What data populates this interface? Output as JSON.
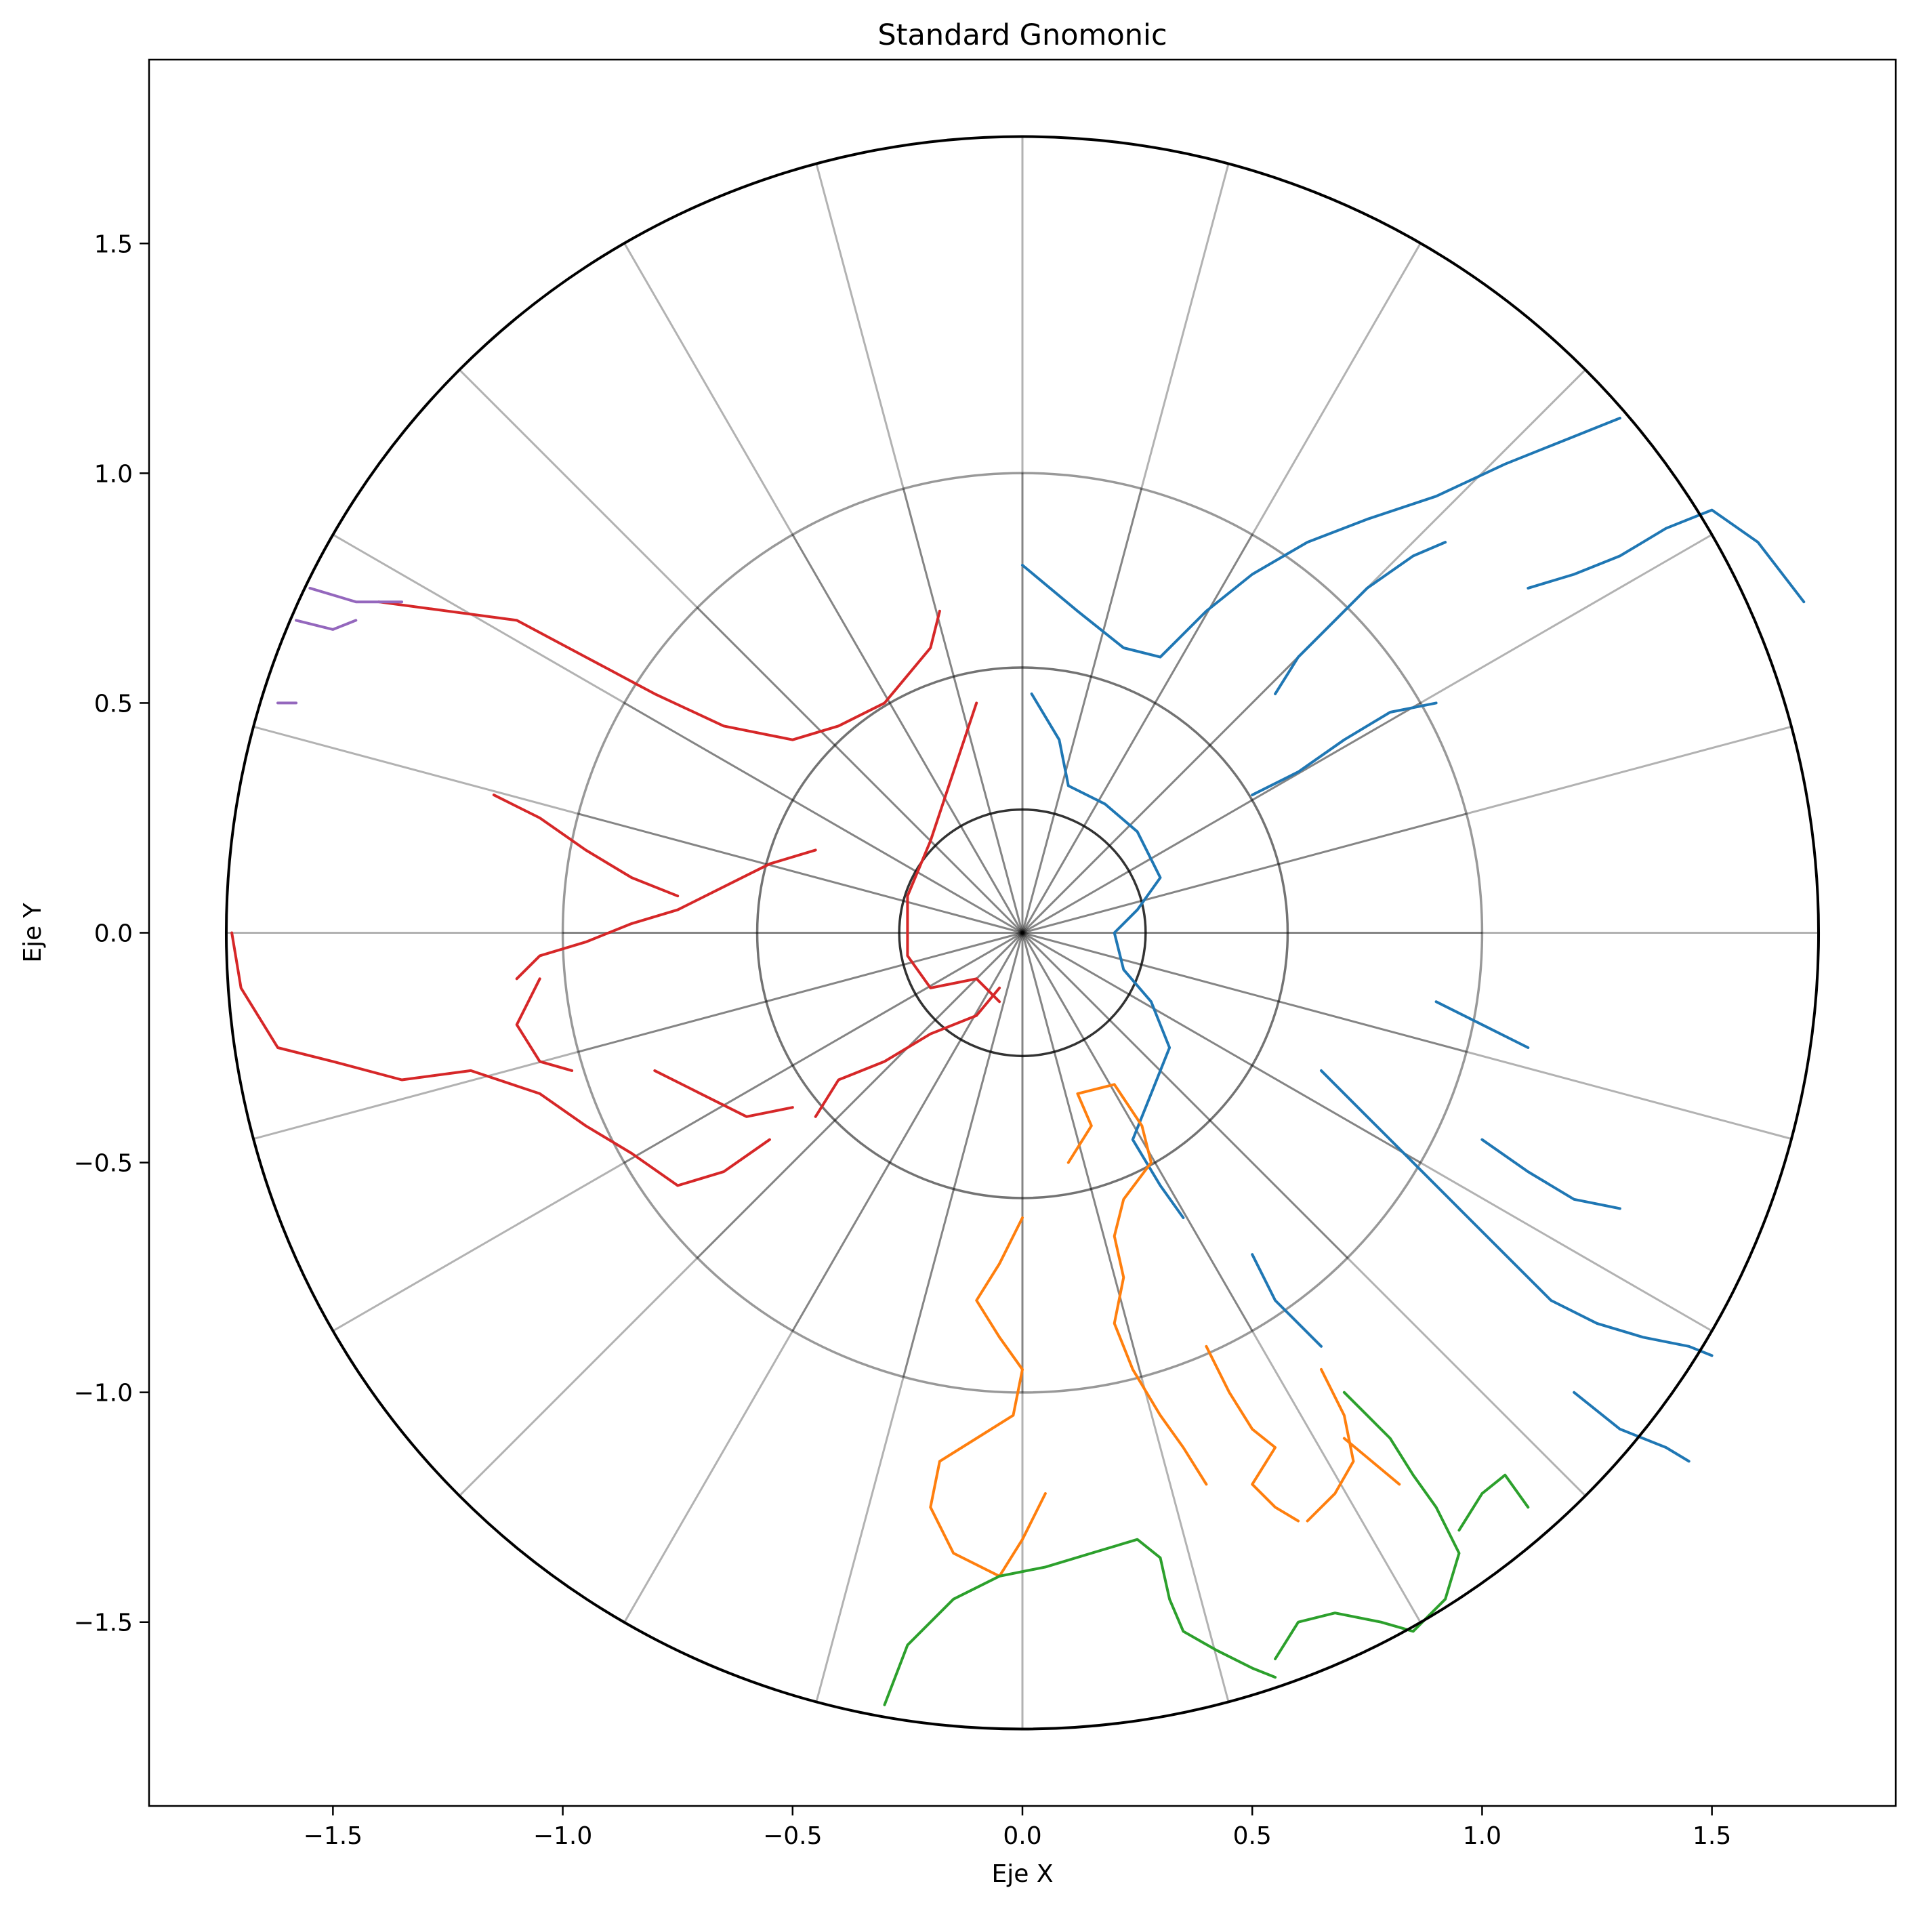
{
  "chart_data": {
    "type": "map",
    "projection": "gnomonic",
    "title": "Standard Gnomonic",
    "xlabel": "Eje X",
    "ylabel": "Eje Y",
    "xlim": [
      -1.9,
      1.9
    ],
    "ylim": [
      -1.9,
      1.9
    ],
    "xticks": [
      -1.5,
      -1.0,
      -0.5,
      0.0,
      0.5,
      1.0,
      1.5
    ],
    "yticks": [
      -1.5,
      -1.0,
      -0.5,
      0.0,
      0.5,
      1.0,
      1.5
    ],
    "xtick_labels": [
      "−1.5",
      "−1.0",
      "−0.5",
      "0.0",
      "0.5",
      "1.0",
      "1.5"
    ],
    "ytick_labels": [
      "−1.5",
      "−1.0",
      "−0.5",
      "0.0",
      "0.5",
      "1.0",
      "1.5"
    ],
    "boundary_radius": 1.732,
    "parallel_radii": [
      0.268,
      0.577,
      1.0
    ],
    "meridian_step_deg": 15,
    "grid_color": "#000000",
    "boundary_color": "#000000",
    "series": [
      {
        "color": "#1f77b4",
        "paths": [
          [
            [
              0.0,
              0.8
            ],
            [
              0.12,
              0.7
            ],
            [
              0.22,
              0.62
            ],
            [
              0.3,
              0.6
            ],
            [
              0.4,
              0.7
            ],
            [
              0.5,
              0.78
            ],
            [
              0.62,
              0.85
            ],
            [
              0.75,
              0.9
            ],
            [
              0.9,
              0.95
            ],
            [
              1.05,
              1.02
            ],
            [
              1.2,
              1.08
            ],
            [
              1.3,
              1.12
            ]
          ],
          [
            [
              0.02,
              0.52
            ],
            [
              0.08,
              0.42
            ],
            [
              0.1,
              0.32
            ],
            [
              0.18,
              0.28
            ],
            [
              0.25,
              0.22
            ],
            [
              0.3,
              0.12
            ],
            [
              0.25,
              0.05
            ],
            [
              0.2,
              0.0
            ],
            [
              0.22,
              -0.08
            ],
            [
              0.28,
              -0.15
            ],
            [
              0.32,
              -0.25
            ],
            [
              0.28,
              -0.35
            ],
            [
              0.24,
              -0.45
            ],
            [
              0.3,
              -0.55
            ],
            [
              0.35,
              -0.62
            ]
          ],
          [
            [
              0.55,
              0.52
            ],
            [
              0.6,
              0.6
            ],
            [
              0.68,
              0.68
            ],
            [
              0.75,
              0.75
            ],
            [
              0.85,
              0.82
            ],
            [
              0.92,
              0.85
            ]
          ],
          [
            [
              0.5,
              0.3
            ],
            [
              0.6,
              0.35
            ],
            [
              0.7,
              0.42
            ],
            [
              0.8,
              0.48
            ],
            [
              0.9,
              0.5
            ]
          ],
          [
            [
              0.65,
              -0.3
            ],
            [
              0.75,
              -0.4
            ],
            [
              0.85,
              -0.5
            ],
            [
              0.95,
              -0.6
            ],
            [
              1.05,
              -0.7
            ],
            [
              1.15,
              -0.8
            ],
            [
              1.25,
              -0.85
            ],
            [
              1.35,
              -0.88
            ],
            [
              1.45,
              -0.9
            ],
            [
              1.5,
              -0.92
            ]
          ],
          [
            [
              0.5,
              -0.7
            ],
            [
              0.55,
              -0.8
            ],
            [
              0.6,
              -0.85
            ],
            [
              0.65,
              -0.9
            ]
          ],
          [
            [
              1.1,
              0.75
            ],
            [
              1.2,
              0.78
            ],
            [
              1.3,
              0.82
            ],
            [
              1.4,
              0.88
            ],
            [
              1.5,
              0.92
            ],
            [
              1.6,
              0.85
            ],
            [
              1.7,
              0.72
            ]
          ],
          [
            [
              1.0,
              -0.45
            ],
            [
              1.1,
              -0.52
            ],
            [
              1.2,
              -0.58
            ],
            [
              1.3,
              -0.6
            ]
          ],
          [
            [
              0.9,
              -0.15
            ],
            [
              1.0,
              -0.2
            ],
            [
              1.1,
              -0.25
            ]
          ],
          [
            [
              1.2,
              -1.0
            ],
            [
              1.3,
              -1.08
            ],
            [
              1.4,
              -1.12
            ],
            [
              1.45,
              -1.15
            ]
          ]
        ]
      },
      {
        "color": "#ff7f0e",
        "paths": [
          [
            [
              0.1,
              -0.5
            ],
            [
              0.15,
              -0.42
            ],
            [
              0.12,
              -0.35
            ],
            [
              0.2,
              -0.33
            ],
            [
              0.26,
              -0.42
            ],
            [
              0.28,
              -0.5
            ],
            [
              0.22,
              -0.58
            ],
            [
              0.2,
              -0.66
            ],
            [
              0.22,
              -0.75
            ],
            [
              0.2,
              -0.85
            ],
            [
              0.24,
              -0.95
            ],
            [
              0.3,
              -1.05
            ],
            [
              0.35,
              -1.12
            ],
            [
              0.4,
              -1.2
            ]
          ],
          [
            [
              0.0,
              -0.62
            ],
            [
              -0.05,
              -0.72
            ],
            [
              -0.1,
              -0.8
            ],
            [
              -0.05,
              -0.88
            ],
            [
              0.0,
              -0.95
            ],
            [
              -0.02,
              -1.05
            ],
            [
              -0.1,
              -1.1
            ],
            [
              -0.18,
              -1.15
            ],
            [
              -0.2,
              -1.25
            ],
            [
              -0.15,
              -1.35
            ],
            [
              -0.05,
              -1.4
            ],
            [
              0.0,
              -1.32
            ],
            [
              0.05,
              -1.22
            ]
          ],
          [
            [
              0.4,
              -0.9
            ],
            [
              0.45,
              -1.0
            ],
            [
              0.5,
              -1.08
            ],
            [
              0.55,
              -1.12
            ],
            [
              0.5,
              -1.2
            ],
            [
              0.55,
              -1.25
            ],
            [
              0.6,
              -1.28
            ]
          ],
          [
            [
              0.65,
              -0.95
            ],
            [
              0.7,
              -1.05
            ],
            [
              0.72,
              -1.15
            ],
            [
              0.68,
              -1.22
            ],
            [
              0.62,
              -1.28
            ]
          ],
          [
            [
              0.7,
              -1.1
            ],
            [
              0.76,
              -1.15
            ],
            [
              0.82,
              -1.2
            ]
          ]
        ]
      },
      {
        "color": "#2ca02c",
        "paths": [
          [
            [
              -0.3,
              -1.68
            ],
            [
              -0.25,
              -1.55
            ],
            [
              -0.15,
              -1.45
            ],
            [
              -0.05,
              -1.4
            ],
            [
              0.05,
              -1.38
            ],
            [
              0.15,
              -1.35
            ],
            [
              0.25,
              -1.32
            ],
            [
              0.3,
              -1.36
            ],
            [
              0.32,
              -1.45
            ],
            [
              0.35,
              -1.52
            ],
            [
              0.42,
              -1.56
            ],
            [
              0.5,
              -1.6
            ],
            [
              0.55,
              -1.62
            ]
          ],
          [
            [
              0.55,
              -1.58
            ],
            [
              0.6,
              -1.5
            ],
            [
              0.68,
              -1.48
            ],
            [
              0.78,
              -1.5
            ],
            [
              0.85,
              -1.52
            ],
            [
              0.92,
              -1.45
            ],
            [
              0.95,
              -1.35
            ],
            [
              0.9,
              -1.25
            ],
            [
              0.85,
              -1.18
            ],
            [
              0.8,
              -1.1
            ],
            [
              0.75,
              -1.05
            ],
            [
              0.7,
              -1.0
            ]
          ],
          [
            [
              0.95,
              -1.3
            ],
            [
              1.0,
              -1.22
            ],
            [
              1.05,
              -1.18
            ],
            [
              1.1,
              -1.25
            ]
          ]
        ]
      },
      {
        "color": "#d62728",
        "paths": [
          [
            [
              -1.72,
              0.0
            ],
            [
              -1.7,
              -0.12
            ],
            [
              -1.62,
              -0.25
            ],
            [
              -1.5,
              -0.28
            ],
            [
              -1.35,
              -0.32
            ],
            [
              -1.2,
              -0.3
            ],
            [
              -1.05,
              -0.35
            ],
            [
              -0.95,
              -0.42
            ],
            [
              -0.85,
              -0.48
            ],
            [
              -0.75,
              -0.55
            ],
            [
              -0.65,
              -0.52
            ],
            [
              -0.55,
              -0.45
            ]
          ],
          [
            [
              -1.4,
              0.72
            ],
            [
              -1.25,
              0.7
            ],
            [
              -1.1,
              0.68
            ],
            [
              -0.95,
              0.6
            ],
            [
              -0.8,
              0.52
            ],
            [
              -0.65,
              0.45
            ],
            [
              -0.5,
              0.42
            ],
            [
              -0.4,
              0.45
            ],
            [
              -0.3,
              0.5
            ],
            [
              -0.2,
              0.62
            ],
            [
              -0.18,
              0.7
            ]
          ],
          [
            [
              -0.1,
              0.5
            ],
            [
              -0.15,
              0.35
            ],
            [
              -0.2,
              0.2
            ],
            [
              -0.25,
              0.08
            ],
            [
              -0.25,
              -0.05
            ],
            [
              -0.2,
              -0.12
            ],
            [
              -0.1,
              -0.1
            ],
            [
              -0.05,
              -0.15
            ]
          ],
          [
            [
              -0.45,
              -0.4
            ],
            [
              -0.4,
              -0.32
            ],
            [
              -0.3,
              -0.28
            ],
            [
              -0.2,
              -0.22
            ],
            [
              -0.1,
              -0.18
            ],
            [
              -0.05,
              -0.12
            ]
          ],
          [
            [
              -1.1,
              -0.1
            ],
            [
              -1.05,
              -0.05
            ],
            [
              -0.95,
              -0.02
            ],
            [
              -0.85,
              0.02
            ],
            [
              -0.75,
              0.05
            ],
            [
              -0.65,
              0.1
            ],
            [
              -0.55,
              0.15
            ],
            [
              -0.45,
              0.18
            ]
          ],
          [
            [
              -1.15,
              0.3
            ],
            [
              -1.05,
              0.25
            ],
            [
              -0.95,
              0.18
            ],
            [
              -0.85,
              0.12
            ],
            [
              -0.75,
              0.08
            ]
          ],
          [
            [
              -0.8,
              -0.3
            ],
            [
              -0.7,
              -0.35
            ],
            [
              -0.6,
              -0.4
            ],
            [
              -0.5,
              -0.38
            ]
          ],
          [
            [
              -1.05,
              -0.1
            ],
            [
              -1.1,
              -0.2
            ],
            [
              -1.05,
              -0.28
            ],
            [
              -0.98,
              -0.3
            ]
          ]
        ]
      },
      {
        "color": "#9467bd",
        "paths": [
          [
            [
              -1.55,
              0.75
            ],
            [
              -1.45,
              0.72
            ],
            [
              -1.35,
              0.72
            ]
          ],
          [
            [
              -1.58,
              0.68
            ],
            [
              -1.5,
              0.66
            ],
            [
              -1.45,
              0.68
            ]
          ],
          [
            [
              -1.62,
              0.5
            ],
            [
              -1.58,
              0.5
            ]
          ]
        ]
      }
    ]
  }
}
